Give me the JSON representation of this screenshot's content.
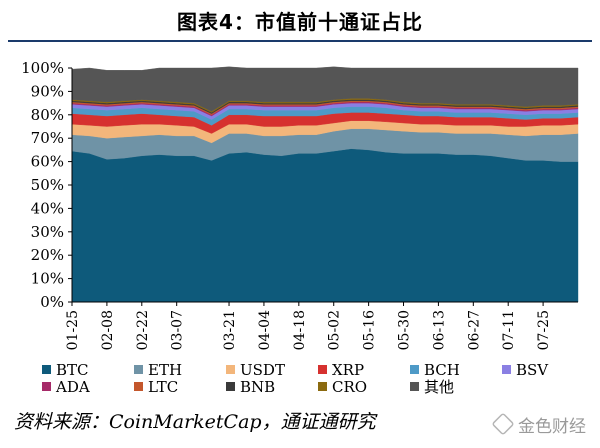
{
  "title": "图表4：市值前十通证占比",
  "source": "资料来源：CoinMarketCap，通证通研究",
  "watermark": "金色财经",
  "chart_data": {
    "type": "area",
    "stacked": true,
    "normalized": true,
    "title": "",
    "xlabel": "",
    "ylabel": "",
    "ylim": [
      0,
      100
    ],
    "yticks": [
      "0%",
      "10%",
      "20%",
      "30%",
      "40%",
      "50%",
      "60%",
      "70%",
      "80%",
      "90%",
      "100%"
    ],
    "x": [
      "01-25",
      "02-01",
      "02-08",
      "02-15",
      "02-22",
      "03-01",
      "03-07",
      "03-14",
      "03-17",
      "03-21",
      "03-28",
      "04-04",
      "04-11",
      "04-18",
      "04-25",
      "05-02",
      "05-09",
      "05-16",
      "05-23",
      "05-30",
      "06-06",
      "06-13",
      "06-20",
      "06-27",
      "07-04",
      "07-11",
      "07-18",
      "07-25",
      "08-01",
      "08-05"
    ],
    "xtick_labels": [
      "01-25",
      "02-08",
      "02-22",
      "03-07",
      "03-21",
      "04-04",
      "04-18",
      "05-02",
      "05-16",
      "05-30",
      "06-13",
      "06-27",
      "07-11",
      "07-25"
    ],
    "grid": false,
    "legend_position": "bottom",
    "series": [
      {
        "name": "BTC",
        "color": "#0e5a7b",
        "values": [
          64.5,
          63.5,
          61.0,
          61.5,
          62.5,
          63.0,
          62.5,
          62.5,
          60.5,
          63.5,
          64.0,
          63.0,
          62.5,
          63.5,
          63.5,
          64.5,
          65.5,
          65.0,
          64.0,
          63.5,
          63.5,
          63.5,
          63.0,
          63.0,
          62.5,
          61.5,
          60.5,
          60.5,
          60.0,
          60.0
        ]
      },
      {
        "name": "ETH",
        "color": "#6f93a6",
        "values": [
          7.0,
          7.5,
          9.0,
          9.0,
          8.5,
          8.5,
          8.5,
          8.5,
          7.5,
          8.5,
          8.0,
          8.0,
          8.5,
          8.0,
          8.0,
          8.5,
          8.5,
          9.0,
          9.5,
          9.5,
          9.0,
          9.0,
          9.0,
          9.0,
          9.5,
          10.0,
          10.5,
          11.0,
          11.5,
          12.0
        ]
      },
      {
        "name": "USDT",
        "color": "#f3b67b",
        "values": [
          4.5,
          4.5,
          5.0,
          5.0,
          5.0,
          4.5,
          4.5,
          4.0,
          4.0,
          4.0,
          4.0,
          4.0,
          4.0,
          4.0,
          4.0,
          3.5,
          3.5,
          3.5,
          3.5,
          3.5,
          3.5,
          3.5,
          3.5,
          3.5,
          3.5,
          3.5,
          4.0,
          4.0,
          4.0,
          4.0
        ]
      },
      {
        "name": "XRP",
        "color": "#d6312f",
        "values": [
          4.5,
          4.5,
          4.5,
          4.5,
          4.5,
          4.0,
          4.0,
          4.0,
          3.5,
          4.0,
          4.0,
          4.5,
          4.5,
          4.0,
          4.0,
          4.0,
          3.5,
          3.5,
          3.5,
          3.5,
          3.5,
          3.5,
          3.5,
          3.5,
          3.5,
          3.5,
          3.0,
          3.0,
          3.0,
          3.0
        ]
      },
      {
        "name": "BCH",
        "color": "#4e9ac7",
        "values": [
          2.5,
          2.5,
          2.5,
          2.5,
          2.5,
          2.5,
          2.5,
          2.5,
          2.5,
          2.5,
          2.5,
          2.5,
          2.5,
          2.5,
          2.5,
          2.5,
          2.5,
          2.5,
          2.5,
          2.0,
          2.0,
          2.0,
          2.0,
          2.0,
          2.0,
          2.0,
          2.0,
          2.0,
          2.0,
          2.0
        ]
      },
      {
        "name": "BSV",
        "color": "#8a7fe3",
        "values": [
          1.5,
          1.5,
          1.5,
          1.5,
          1.5,
          1.5,
          1.5,
          1.5,
          1.5,
          1.5,
          1.5,
          1.5,
          1.5,
          1.5,
          1.5,
          1.5,
          1.5,
          1.5,
          1.5,
          1.5,
          1.5,
          1.5,
          1.5,
          1.5,
          1.5,
          1.5,
          1.5,
          1.5,
          1.5,
          1.5
        ]
      },
      {
        "name": "ADA",
        "color": "#a62a68",
        "values": [
          0.5,
          0.5,
          0.5,
          0.5,
          0.5,
          0.5,
          0.5,
          0.5,
          0.5,
          0.5,
          0.5,
          0.5,
          0.5,
          0.5,
          0.5,
          0.5,
          0.5,
          0.5,
          0.5,
          0.5,
          0.5,
          0.5,
          0.5,
          0.5,
          0.5,
          0.5,
          0.5,
          0.5,
          0.5,
          0.5
        ]
      },
      {
        "name": "LTC",
        "color": "#c4572c",
        "values": [
          0.5,
          0.5,
          0.5,
          0.5,
          0.5,
          0.5,
          0.5,
          0.5,
          0.5,
          0.5,
          0.5,
          0.5,
          0.5,
          0.5,
          0.5,
          0.5,
          0.5,
          0.5,
          0.5,
          0.5,
          0.5,
          0.5,
          0.5,
          0.5,
          0.5,
          0.5,
          0.5,
          0.5,
          0.5,
          0.5
        ]
      },
      {
        "name": "BNB",
        "color": "#3a3a3a",
        "values": [
          0.5,
          0.5,
          0.5,
          0.5,
          0.5,
          0.5,
          0.5,
          0.5,
          0.5,
          0.5,
          0.5,
          0.5,
          0.5,
          0.5,
          0.5,
          0.5,
          0.5,
          0.5,
          0.5,
          0.5,
          0.5,
          0.5,
          0.5,
          0.5,
          0.5,
          0.5,
          0.5,
          0.5,
          0.5,
          0.5
        ]
      },
      {
        "name": "CRO",
        "color": "#8b6a0f",
        "values": [
          0.5,
          0.5,
          0.5,
          0.5,
          0.5,
          0.5,
          0.5,
          0.5,
          0.5,
          0.5,
          0.5,
          0.5,
          0.5,
          0.5,
          0.5,
          0.5,
          0.5,
          0.5,
          0.5,
          0.5,
          0.5,
          0.5,
          0.5,
          0.5,
          0.5,
          0.5,
          0.5,
          0.5,
          0.5,
          0.5
        ]
      },
      {
        "name": "其他",
        "color": "#555555",
        "values": [
          13.0,
          14.0,
          13.5,
          13.0,
          12.5,
          14.0,
          14.5,
          15.0,
          18.5,
          14.5,
          14.0,
          14.5,
          14.5,
          14.5,
          14.5,
          14.0,
          13.0,
          13.0,
          13.5,
          14.5,
          15.0,
          15.0,
          15.5,
          15.5,
          15.5,
          16.0,
          16.5,
          16.0,
          16.0,
          15.5
        ]
      }
    ]
  }
}
